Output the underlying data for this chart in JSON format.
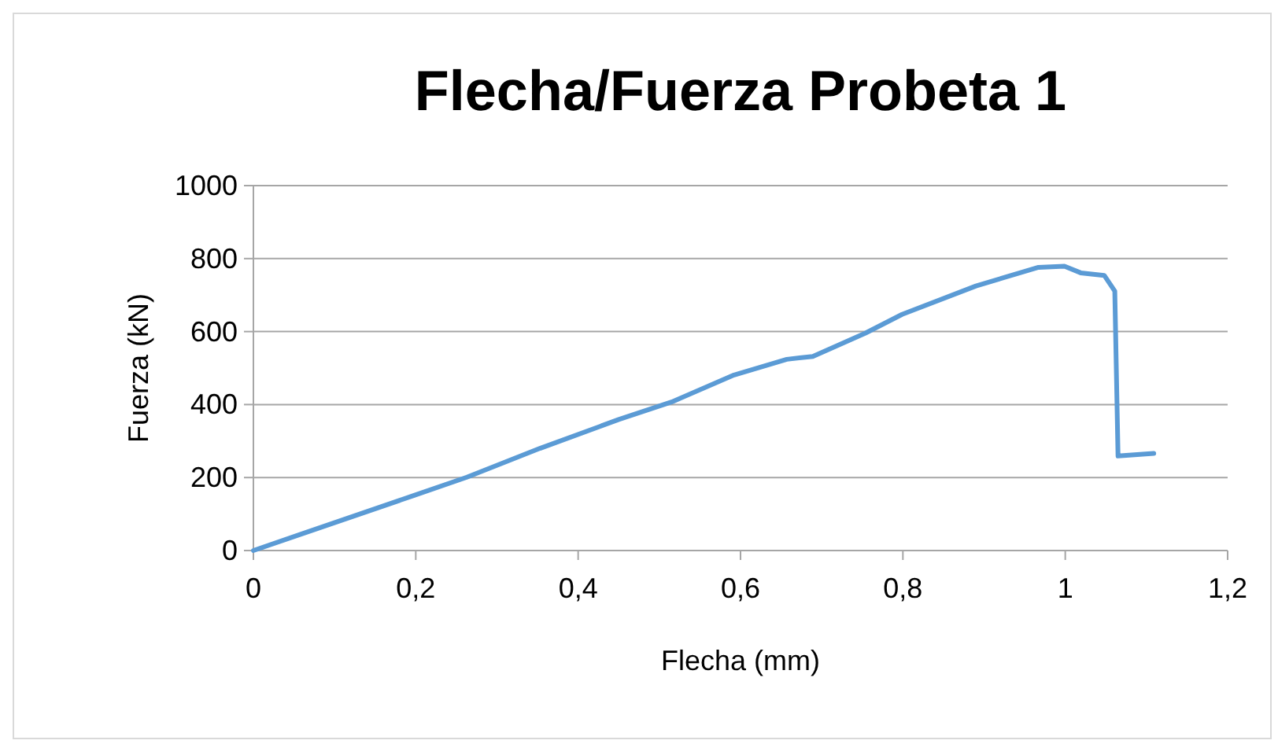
{
  "chart_data": {
    "type": "line",
    "title": "Flecha/Fuerza Probeta 1",
    "xlabel": "Flecha (mm)",
    "ylabel": "Fuerza (kN)",
    "x": [
      0,
      0.056,
      0.198,
      0.263,
      0.353,
      0.45,
      0.515,
      0.592,
      0.657,
      0.689,
      0.754,
      0.799,
      0.89,
      0.967,
      0.999,
      1.019,
      1.048,
      1.061,
      1.065,
      1.109
    ],
    "series": [
      {
        "color": "#5b9bd5",
        "values": [
          0,
          43,
          151,
          201,
          280,
          359,
          407,
          481,
          524,
          532,
          596,
          647,
          725,
          776,
          779,
          761,
          754,
          711,
          259,
          266
        ]
      }
    ],
    "xlim": [
      0,
      1.2
    ],
    "xticks": [
      {
        "value": 0,
        "label": "0"
      },
      {
        "value": 0.2,
        "label": "0,2"
      },
      {
        "value": 0.4,
        "label": "0,4"
      },
      {
        "value": 0.6,
        "label": "0,6"
      },
      {
        "value": 0.8,
        "label": "0,8"
      },
      {
        "value": 1,
        "label": "1"
      },
      {
        "value": 1.2,
        "label": "1,2"
      }
    ],
    "ylim": [
      0,
      1000
    ],
    "yticks": [
      0,
      200,
      400,
      600,
      800,
      1000
    ],
    "grid": "y",
    "marker": "none",
    "line_style": "solid"
  }
}
